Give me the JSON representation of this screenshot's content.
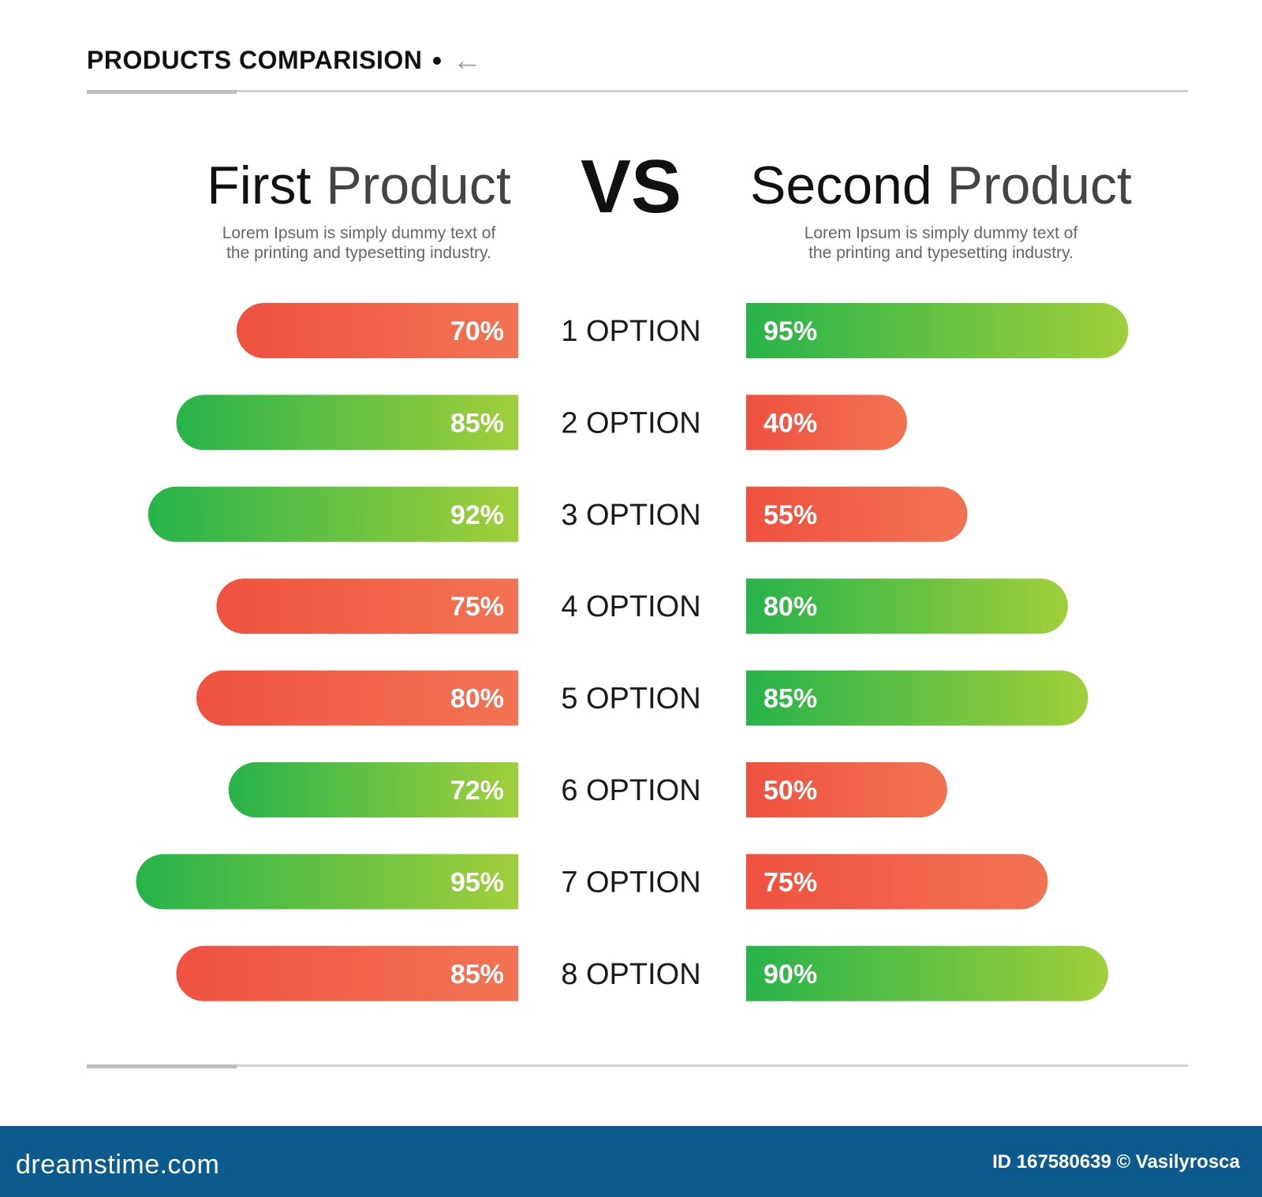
{
  "header": {
    "title": "PRODUCTS COMPARISION",
    "arrow_icon": "arrow-left-icon"
  },
  "products": {
    "first": {
      "title_word1": "First",
      "title_word2": "Product",
      "description_line1": "Lorem Ipsum is simply dummy text of",
      "description_line2": "the printing and typesetting industry."
    },
    "vs_label": "VS",
    "second": {
      "title_word1": "Second",
      "title_word2": "Product",
      "description_line1": "Lorem Ipsum is simply dummy text of",
      "description_line2": "the printing and typesetting industry."
    }
  },
  "colors": {
    "red_start": "#ef5140",
    "red_end": "#f27353",
    "green_start": "#27b34a",
    "green_end": "#a1cf3b"
  },
  "chart_data": {
    "type": "bar",
    "categories": [
      "1 OPTION",
      "2 OPTION",
      "3 OPTION",
      "4 OPTION",
      "5 OPTION",
      "6 OPTION",
      "7 OPTION",
      "8 OPTION"
    ],
    "series": [
      {
        "values": [
          70,
          85,
          92,
          75,
          80,
          72,
          95,
          85
        ],
        "labels": [
          "70%",
          "85%",
          "92%",
          "75%",
          "80%",
          "72%",
          "95%",
          "85%"
        ],
        "colors": [
          "red",
          "green",
          "green",
          "red",
          "red",
          "green",
          "green",
          "red"
        ]
      },
      {
        "values": [
          95,
          40,
          55,
          80,
          85,
          50,
          75,
          90
        ],
        "labels": [
          "95%",
          "40%",
          "55%",
          "80%",
          "85%",
          "50%",
          "75%",
          "90%"
        ],
        "colors": [
          "green",
          "red",
          "red",
          "green",
          "green",
          "red",
          "red",
          "green"
        ]
      }
    ],
    "ylim": [
      0,
      100
    ]
  },
  "footer": {
    "logo": "dreamstime.com",
    "id_text": "ID 167580639 © Vasilyrosca"
  }
}
